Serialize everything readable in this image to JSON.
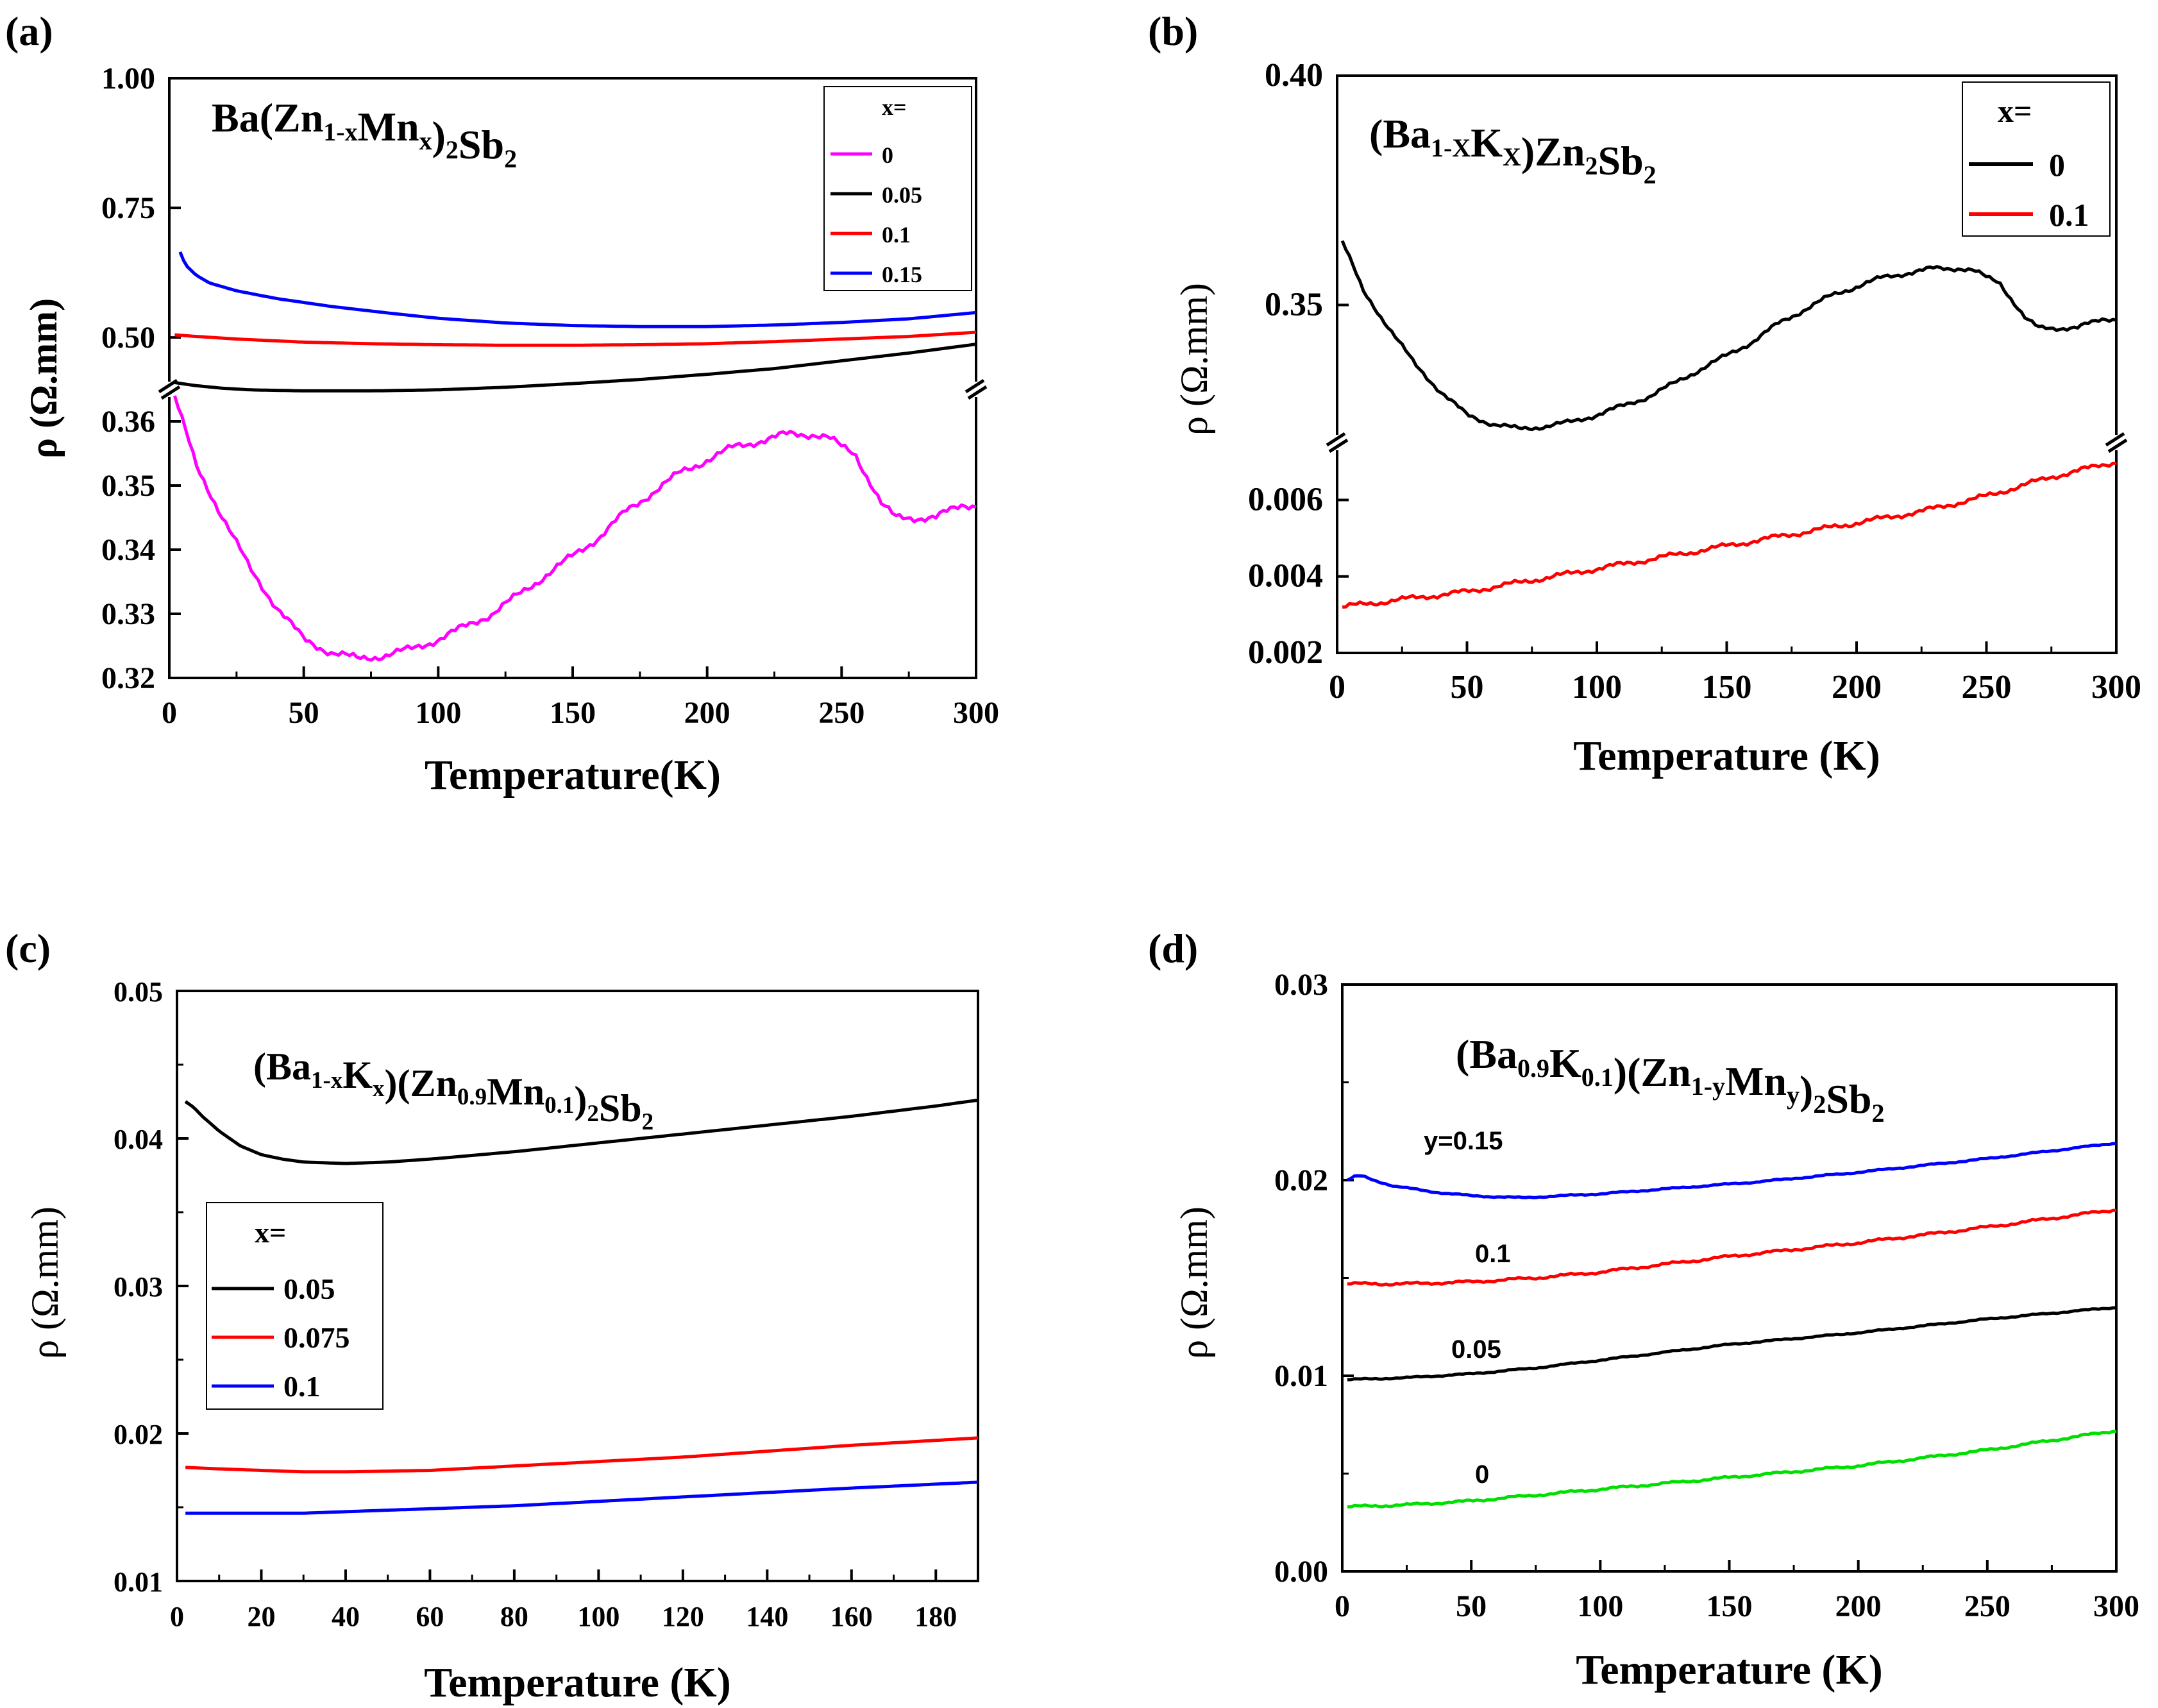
{
  "chart_data": [
    {
      "id": "a",
      "panel_label": "(a)",
      "type": "line",
      "title": "Ba(Zn1-xMnx)2Sb2",
      "formula_parts": [
        [
          "Ba(Zn",
          ""
        ],
        [
          "1-x",
          "sub"
        ],
        [
          "Mn",
          ""
        ],
        [
          "x",
          "sub"
        ],
        [
          ")",
          ""
        ],
        [
          "2",
          "sub"
        ],
        [
          "Sb",
          ""
        ],
        [
          "2",
          "sub"
        ]
      ],
      "xlabel": "Temperature(K)",
      "ylabel": "ρ (Ω.mm)",
      "xlim": [
        0,
        300
      ],
      "broken_y_axis": true,
      "y_upper_range": [
        0.4,
        1.0
      ],
      "y_lower_range": [
        0.32,
        0.365
      ],
      "x_ticks": [
        "0",
        "50",
        "100",
        "150",
        "200",
        "250",
        "300"
      ],
      "y_upper_ticks": [
        "0.50",
        "0.75",
        "1.00"
      ],
      "y_lower_ticks": [
        "0.32",
        "0.33",
        "0.34",
        "0.35",
        "0.36"
      ],
      "legend_title": "x=",
      "legend_position": "top-right",
      "series": [
        {
          "name": "0",
          "color": "#ff00ff",
          "segment": "lower",
          "noise": 0.0007,
          "x": [
            2,
            10,
            20,
            30,
            40,
            50,
            60,
            70,
            80,
            90,
            100,
            110,
            120,
            130,
            140,
            150,
            160,
            170,
            180,
            190,
            200,
            210,
            220,
            230,
            240,
            245,
            250,
            255,
            260,
            265,
            270,
            275,
            280,
            285,
            290,
            295,
            300
          ],
          "y": [
            0.364,
            0.353,
            0.345,
            0.337,
            0.331,
            0.326,
            0.324,
            0.323,
            0.3235,
            0.3245,
            0.326,
            0.328,
            0.33,
            0.333,
            0.336,
            0.339,
            0.342,
            0.346,
            0.349,
            0.352,
            0.354,
            0.356,
            0.357,
            0.358,
            0.358,
            0.3575,
            0.356,
            0.355,
            0.351,
            0.347,
            0.345,
            0.345,
            0.345,
            0.345,
            0.346,
            0.347,
            0.347
          ]
        },
        {
          "name": "0.05",
          "color": "#000000",
          "segment": "upper",
          "x": [
            2,
            10,
            20,
            30,
            50,
            75,
            100,
            125,
            150,
            175,
            200,
            225,
            250,
            275,
            300
          ],
          "y": [
            0.413,
            0.407,
            0.402,
            0.399,
            0.397,
            0.397,
            0.399,
            0.404,
            0.411,
            0.419,
            0.429,
            0.44,
            0.455,
            0.47,
            0.487
          ]
        },
        {
          "name": "0.1",
          "color": "#ff0000",
          "segment": "upper",
          "x": [
            2,
            10,
            25,
            50,
            75,
            100,
            125,
            150,
            175,
            200,
            225,
            250,
            275,
            300
          ],
          "y": [
            0.505,
            0.502,
            0.497,
            0.491,
            0.488,
            0.486,
            0.485,
            0.485,
            0.486,
            0.488,
            0.492,
            0.497,
            0.502,
            0.51
          ]
        },
        {
          "name": "0.15",
          "color": "#0000ff",
          "segment": "upper",
          "x": [
            4,
            6,
            10,
            15,
            25,
            40,
            60,
            80,
            100,
            125,
            150,
            175,
            200,
            225,
            250,
            275,
            300
          ],
          "y": [
            0.665,
            0.64,
            0.62,
            0.605,
            0.59,
            0.575,
            0.56,
            0.548,
            0.537,
            0.528,
            0.523,
            0.521,
            0.521,
            0.524,
            0.529,
            0.536,
            0.548
          ]
        }
      ]
    },
    {
      "id": "b",
      "panel_label": "(b)",
      "type": "line",
      "title": "(Ba1-XKX)Zn2Sb2",
      "formula_parts": [
        [
          "(Ba",
          ""
        ],
        [
          "1-X",
          "sub"
        ],
        [
          "K",
          ""
        ],
        [
          "X",
          "sub"
        ],
        [
          ")Zn",
          ""
        ],
        [
          "2",
          "sub"
        ],
        [
          "Sb",
          ""
        ],
        [
          "2",
          "sub"
        ]
      ],
      "xlabel": "Temperature (K)",
      "ylabel": "ρ (Ω.mm)",
      "xlim": [
        0,
        300
      ],
      "broken_y_axis": true,
      "y_upper_range": [
        0.32,
        0.4
      ],
      "y_lower_range": [
        0.002,
        0.0075
      ],
      "x_ticks": [
        "0",
        "50",
        "100",
        "150",
        "200",
        "250",
        "300"
      ],
      "y_upper_ticks": [
        "0.35",
        "0.40"
      ],
      "y_lower_ticks": [
        "0.002",
        "0.004",
        "0.006"
      ],
      "legend_title": "x=",
      "legend_position": "top-right",
      "series": [
        {
          "name": "0",
          "color": "#000000",
          "segment": "upper",
          "noise": 0.0006,
          "x": [
            2,
            10,
            20,
            30,
            40,
            50,
            60,
            70,
            80,
            90,
            100,
            110,
            120,
            130,
            140,
            150,
            160,
            170,
            180,
            190,
            200,
            210,
            220,
            230,
            240,
            245,
            250,
            255,
            260,
            265,
            270,
            275,
            280,
            285,
            290,
            295,
            300
          ],
          "y": [
            0.364,
            0.353,
            0.345,
            0.337,
            0.331,
            0.326,
            0.324,
            0.323,
            0.3235,
            0.3245,
            0.326,
            0.328,
            0.33,
            0.333,
            0.336,
            0.339,
            0.342,
            0.346,
            0.349,
            0.352,
            0.354,
            0.356,
            0.357,
            0.358,
            0.358,
            0.3575,
            0.356,
            0.355,
            0.351,
            0.347,
            0.345,
            0.345,
            0.345,
            0.345,
            0.346,
            0.347,
            0.347
          ]
        },
        {
          "name": "0.1",
          "color": "#ff0000",
          "segment": "lower",
          "noise": 8e-05,
          "x": [
            2,
            25,
            50,
            75,
            100,
            125,
            150,
            175,
            200,
            225,
            250,
            275,
            300
          ],
          "y": [
            0.0032,
            0.0034,
            0.0036,
            0.0039,
            0.0042,
            0.0045,
            0.0048,
            0.0051,
            0.0054,
            0.0057,
            0.0061,
            0.0066,
            0.007
          ]
        }
      ]
    },
    {
      "id": "c",
      "panel_label": "(c)",
      "type": "line",
      "title": "(Ba1-xKx)(Zn0.9Mn0.1)2Sb2",
      "formula_parts": [
        [
          "(Ba",
          ""
        ],
        [
          "1-x",
          "sub"
        ],
        [
          "K",
          ""
        ],
        [
          "x",
          "sub"
        ],
        [
          ")(Zn",
          ""
        ],
        [
          "0.9",
          "sub"
        ],
        [
          "Mn",
          ""
        ],
        [
          "0.1",
          "sub"
        ],
        [
          ")",
          ""
        ],
        [
          "2",
          "sub"
        ],
        [
          "Sb",
          ""
        ],
        [
          "2",
          "sub"
        ]
      ],
      "xlabel": "Temperature (K)",
      "ylabel": "ρ (Ω.mm)",
      "xlim": [
        0,
        190
      ],
      "ylim": [
        0.01,
        0.05
      ],
      "x_ticks": [
        "0",
        "20",
        "40",
        "60",
        "80",
        "100",
        "120",
        "140",
        "160",
        "180"
      ],
      "y_ticks": [
        "0.01",
        "0.02",
        "0.03",
        "0.04",
        "0.05"
      ],
      "legend_title": "x=",
      "legend_position": "center-left",
      "series": [
        {
          "name": "0.05",
          "color": "#000000",
          "x": [
            2,
            4,
            6,
            10,
            15,
            20,
            25,
            30,
            40,
            50,
            60,
            80,
            100,
            120,
            140,
            160,
            180,
            190
          ],
          "y": [
            0.0425,
            0.0421,
            0.0415,
            0.0405,
            0.0395,
            0.0389,
            0.0386,
            0.0384,
            0.0383,
            0.0384,
            0.0386,
            0.0391,
            0.0397,
            0.0403,
            0.0409,
            0.0415,
            0.0422,
            0.0426
          ]
        },
        {
          "name": "0.075",
          "color": "#ff0000",
          "x": [
            2,
            10,
            20,
            30,
            40,
            60,
            80,
            100,
            120,
            140,
            160,
            190
          ],
          "y": [
            0.0177,
            0.0176,
            0.0175,
            0.0174,
            0.0174,
            0.0175,
            0.0178,
            0.0181,
            0.0184,
            0.0188,
            0.0192,
            0.0197
          ]
        },
        {
          "name": "0.1",
          "color": "#0000ff",
          "x": [
            2,
            10,
            20,
            30,
            40,
            60,
            80,
            100,
            120,
            140,
            160,
            190
          ],
          "y": [
            0.0146,
            0.0146,
            0.0146,
            0.0146,
            0.0147,
            0.0149,
            0.0151,
            0.0154,
            0.0157,
            0.016,
            0.0163,
            0.0167
          ]
        }
      ]
    },
    {
      "id": "d",
      "panel_label": "(d)",
      "type": "line",
      "title": "(Ba0.9K0.1)(Zn1-yMny)2Sb2",
      "formula_parts": [
        [
          "(Ba",
          ""
        ],
        [
          "0.9",
          "sub"
        ],
        [
          "K",
          ""
        ],
        [
          "0.1",
          "sub"
        ],
        [
          ")(Zn",
          ""
        ],
        [
          "1-y",
          "sub"
        ],
        [
          "Mn",
          ""
        ],
        [
          "y",
          "sub"
        ],
        [
          ")",
          ""
        ],
        [
          "2",
          "sub"
        ],
        [
          "Sb",
          ""
        ],
        [
          "2",
          "sub"
        ]
      ],
      "xlabel": "Temperature (K)",
      "ylabel": "ρ (Ω.mm)",
      "xlim": [
        0,
        300
      ],
      "ylim": [
        0.0,
        0.03
      ],
      "x_ticks": [
        "0",
        "50",
        "100",
        "150",
        "200",
        "250",
        "300"
      ],
      "y_ticks": [
        "0.00",
        "0.01",
        "0.02",
        "0.03"
      ],
      "legend": "inline labels",
      "series": [
        {
          "name": "y=0.15",
          "label": "y=0.15",
          "color": "#0000ff",
          "noise": 4e-05,
          "x": [
            2,
            5,
            8,
            12,
            20,
            35,
            50,
            70,
            100,
            130,
            160,
            200,
            250,
            300
          ],
          "y": [
            0.02,
            0.0202,
            0.0202,
            0.02,
            0.0197,
            0.0194,
            0.0192,
            0.0191,
            0.0193,
            0.0196,
            0.0199,
            0.0204,
            0.0211,
            0.0219
          ]
        },
        {
          "name": "0.1",
          "label": "0.1",
          "color": "#ff0000",
          "noise": 8e-05,
          "x": [
            2,
            25,
            50,
            75,
            100,
            150,
            200,
            250,
            300
          ],
          "y": [
            0.0147,
            0.0147,
            0.0148,
            0.015,
            0.0153,
            0.0161,
            0.0168,
            0.0176,
            0.0185
          ]
        },
        {
          "name": "0.05",
          "label": "0.05",
          "color": "#000000",
          "noise": 4e-05,
          "x": [
            2,
            25,
            50,
            75,
            100,
            150,
            200,
            250,
            300
          ],
          "y": [
            0.0098,
            0.0099,
            0.0101,
            0.0104,
            0.0108,
            0.0116,
            0.0122,
            0.0129,
            0.0135
          ]
        },
        {
          "name": "0",
          "label": "0",
          "color": "#00e000",
          "noise": 7e-05,
          "x": [
            2,
            25,
            50,
            75,
            100,
            150,
            200,
            250,
            300
          ],
          "y": [
            0.0033,
            0.0034,
            0.0036,
            0.0039,
            0.0042,
            0.0048,
            0.0054,
            0.0062,
            0.0072
          ]
        }
      ]
    }
  ]
}
